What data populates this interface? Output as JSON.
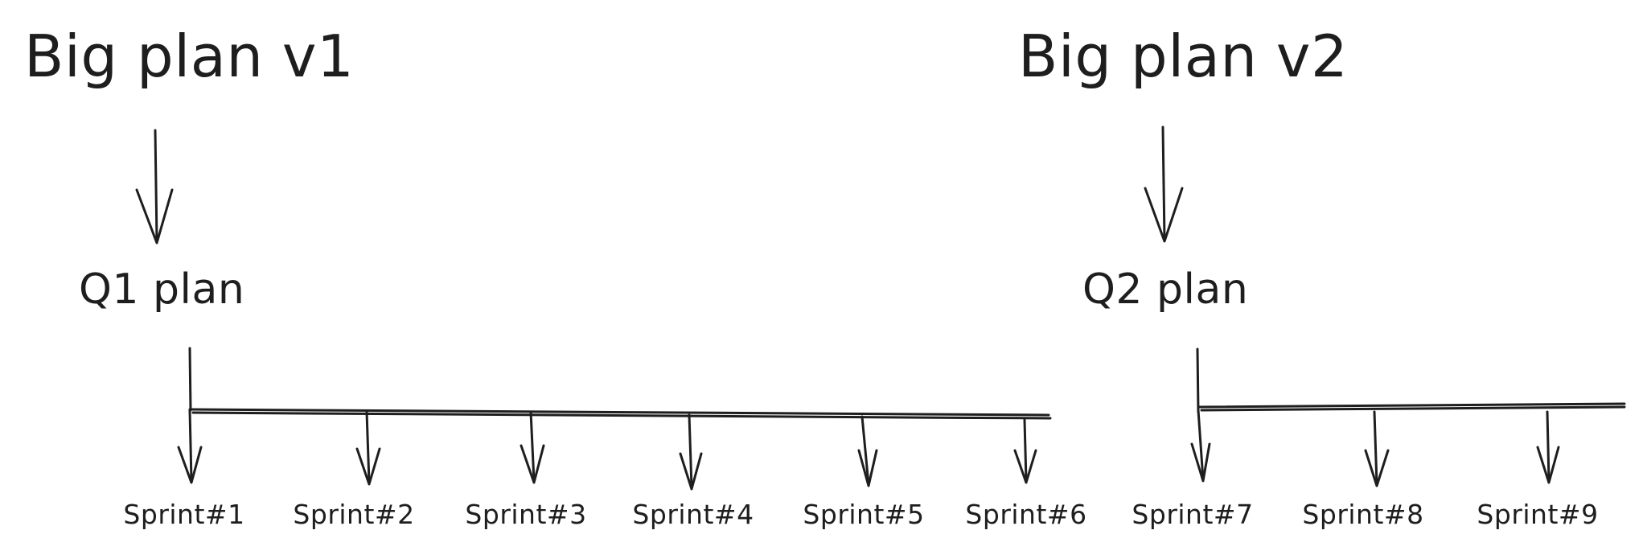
{
  "plans": [
    {
      "title": "Big plan v1",
      "quarter": "Q1 plan",
      "sprints": [
        "Sprint#1",
        "Sprint#2",
        "Sprint#3",
        "Sprint#4",
        "Sprint#5",
        "Sprint#6"
      ]
    },
    {
      "title": "Big plan v2",
      "quarter": "Q2 plan",
      "sprints": [
        "Sprint#7",
        "Sprint#8",
        "Sprint#9"
      ]
    }
  ],
  "colors": {
    "ink": "#1e1e1e",
    "background": "#ffffff"
  }
}
